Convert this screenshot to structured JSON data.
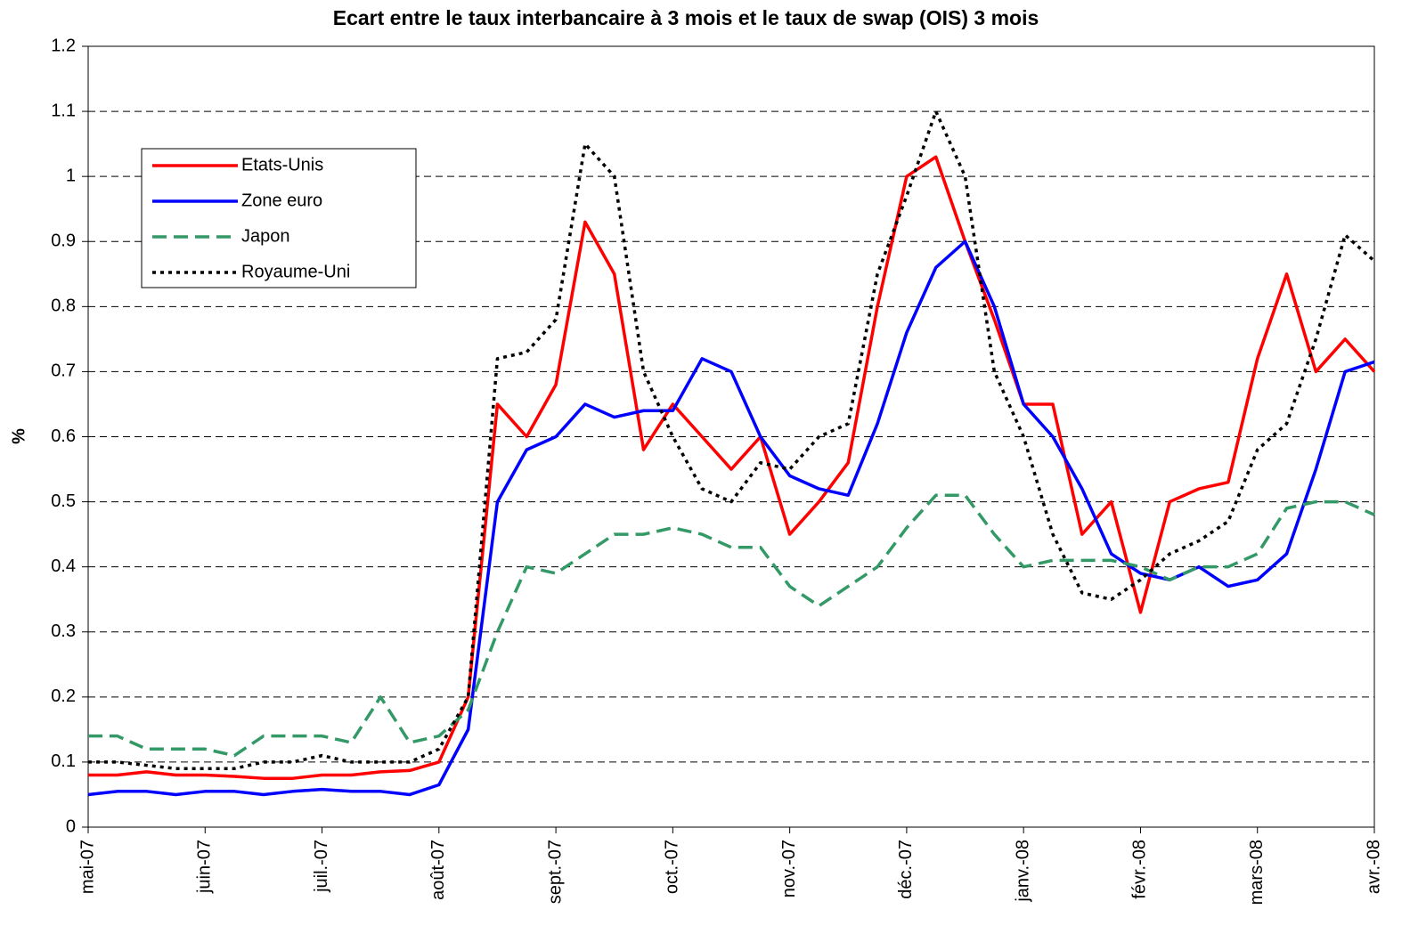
{
  "chart_data": {
    "type": "line",
    "title": "Ecart entre le taux interbancaire à 3 mois et le taux de swap (OIS) 3 mois",
    "y_label": "%",
    "categories": [
      "mai-07",
      null,
      null,
      null,
      "juin-07",
      null,
      null,
      null,
      "juil.-07",
      null,
      null,
      null,
      "août-07",
      null,
      null,
      null,
      "sept.-07",
      null,
      null,
      null,
      "oct.-07",
      null,
      null,
      null,
      "nov.-07",
      null,
      null,
      null,
      "déc.-07",
      null,
      null,
      null,
      "janv.-08",
      null,
      null,
      null,
      "févr.-08",
      null,
      null,
      null,
      "mars-08",
      null,
      null,
      null,
      "avr.-08"
    ],
    "series": [
      {
        "name": "Etats-Unis",
        "color": "#ff0000",
        "dash": "solid",
        "values": [
          0.08,
          0.08,
          0.085,
          0.08,
          0.08,
          0.078,
          0.075,
          0.075,
          0.08,
          0.08,
          0.085,
          0.087,
          0.1,
          0.2,
          0.65,
          0.6,
          0.68,
          0.93,
          0.85,
          0.58,
          0.65,
          0.6,
          0.55,
          0.6,
          0.45,
          0.5,
          0.56,
          0.8,
          1.0,
          1.03,
          0.9,
          0.78,
          0.65,
          0.65,
          0.45,
          0.5,
          0.33,
          0.5,
          0.52,
          0.53,
          0.72,
          0.85,
          0.7,
          0.75,
          0.7
        ]
      },
      {
        "name": "Zone euro",
        "color": "#0000ff",
        "dash": "solid",
        "values": [
          0.05,
          0.055,
          0.055,
          0.05,
          0.055,
          0.055,
          0.05,
          0.055,
          0.058,
          0.055,
          0.055,
          0.05,
          0.065,
          0.15,
          0.5,
          0.58,
          0.6,
          0.65,
          0.63,
          0.64,
          0.64,
          0.72,
          0.7,
          0.6,
          0.54,
          0.52,
          0.51,
          0.62,
          0.76,
          0.86,
          0.9,
          0.8,
          0.65,
          0.6,
          0.52,
          0.42,
          0.39,
          0.38,
          0.4,
          0.37,
          0.38,
          0.42,
          0.55,
          0.7,
          0.715
        ]
      },
      {
        "name": "Japon",
        "color": "#339966",
        "dash": "dashed",
        "values": [
          0.14,
          0.14,
          0.12,
          0.12,
          0.12,
          0.11,
          0.14,
          0.14,
          0.14,
          0.13,
          0.2,
          0.13,
          0.14,
          0.18,
          0.3,
          0.4,
          0.39,
          0.42,
          0.45,
          0.45,
          0.46,
          0.45,
          0.43,
          0.43,
          0.37,
          0.34,
          0.37,
          0.4,
          0.46,
          0.51,
          0.51,
          0.45,
          0.4,
          0.41,
          0.41,
          0.41,
          0.4,
          0.38,
          0.4,
          0.4,
          0.42,
          0.49,
          0.5,
          0.5,
          0.48
        ]
      },
      {
        "name": "Royaume-Uni",
        "color": "#000000",
        "dash": "dotted",
        "values": [
          0.1,
          0.1,
          0.095,
          0.09,
          0.09,
          0.09,
          0.1,
          0.1,
          0.11,
          0.1,
          0.1,
          0.1,
          0.12,
          0.2,
          0.72,
          0.73,
          0.78,
          1.05,
          1.0,
          0.7,
          0.6,
          0.52,
          0.5,
          0.56,
          0.55,
          0.6,
          0.62,
          0.85,
          0.97,
          1.1,
          1.0,
          0.7,
          0.6,
          0.45,
          0.36,
          0.35,
          0.38,
          0.42,
          0.44,
          0.47,
          0.58,
          0.62,
          0.75,
          0.91,
          0.87
        ]
      }
    ],
    "ylim": [
      0,
      1.2
    ],
    "yticks": [
      0,
      0.1,
      0.2,
      0.3,
      0.4,
      0.5,
      0.6,
      0.7,
      0.8,
      0.9,
      1,
      1.1,
      1.2
    ],
    "grid": true,
    "legend": "upper left"
  }
}
